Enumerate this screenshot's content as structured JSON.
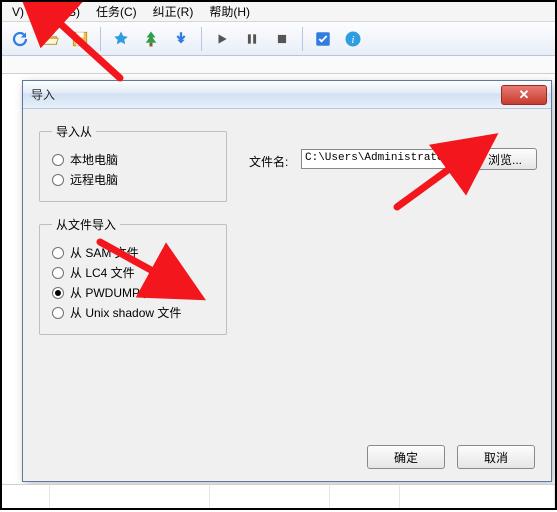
{
  "menubar": {
    "items": [
      {
        "label": "V)"
      },
      {
        "label": "会话(S)"
      },
      {
        "label": "任务(C)"
      },
      {
        "label": "纠正(R)"
      },
      {
        "label": "帮助(H)"
      }
    ]
  },
  "toolbar": {
    "icons": [
      {
        "name": "refresh-icon",
        "color": "#2f7de1"
      },
      {
        "name": "folder-open-icon",
        "color": "#f2c24b"
      },
      {
        "name": "save-icon",
        "color": "#f2c24b"
      },
      {
        "name": "sep"
      },
      {
        "name": "wizard-icon",
        "color": "#2f9de1"
      },
      {
        "name": "tree-icon",
        "color": "#2f9d4a"
      },
      {
        "name": "download-icon",
        "color": "#2f7de1"
      },
      {
        "name": "sep"
      },
      {
        "name": "play-icon",
        "color": "#555"
      },
      {
        "name": "pause-icon",
        "color": "#555"
      },
      {
        "name": "stop-icon",
        "color": "#555"
      },
      {
        "name": "sep"
      },
      {
        "name": "settings-icon",
        "color": "#2f7de1"
      },
      {
        "name": "info-icon",
        "color": "#2f9de1"
      }
    ]
  },
  "dialog": {
    "title": "导入",
    "close_glyph": "✕",
    "group1": {
      "legend": "导入从",
      "options": [
        {
          "label": "本地电脑",
          "selected": false
        },
        {
          "label": "远程电脑",
          "selected": false
        }
      ]
    },
    "group2": {
      "legend": "从文件导入",
      "options": [
        {
          "label": "从 SAM 文件",
          "selected": false
        },
        {
          "label": "从 LC4 文件",
          "selected": false
        },
        {
          "label": "从 PWDUMP 文件",
          "selected": true
        },
        {
          "label": "从 Unix shadow 文件",
          "selected": false
        }
      ]
    },
    "file": {
      "label": "文件名:",
      "value": "C:\\Users\\Administrator\\Deskto",
      "browse": "浏览..."
    },
    "buttons": {
      "ok": "确定",
      "cancel": "取消"
    }
  },
  "annotations": {
    "arrow_color": "#f3161c",
    "arrows": [
      {
        "from": [
          118,
          76
        ],
        "to": [
          50,
          14
        ]
      },
      {
        "from": [
          395,
          205
        ],
        "to": [
          456,
          160
        ]
      },
      {
        "from": [
          98,
          240
        ],
        "to": [
          160,
          275
        ]
      }
    ]
  }
}
